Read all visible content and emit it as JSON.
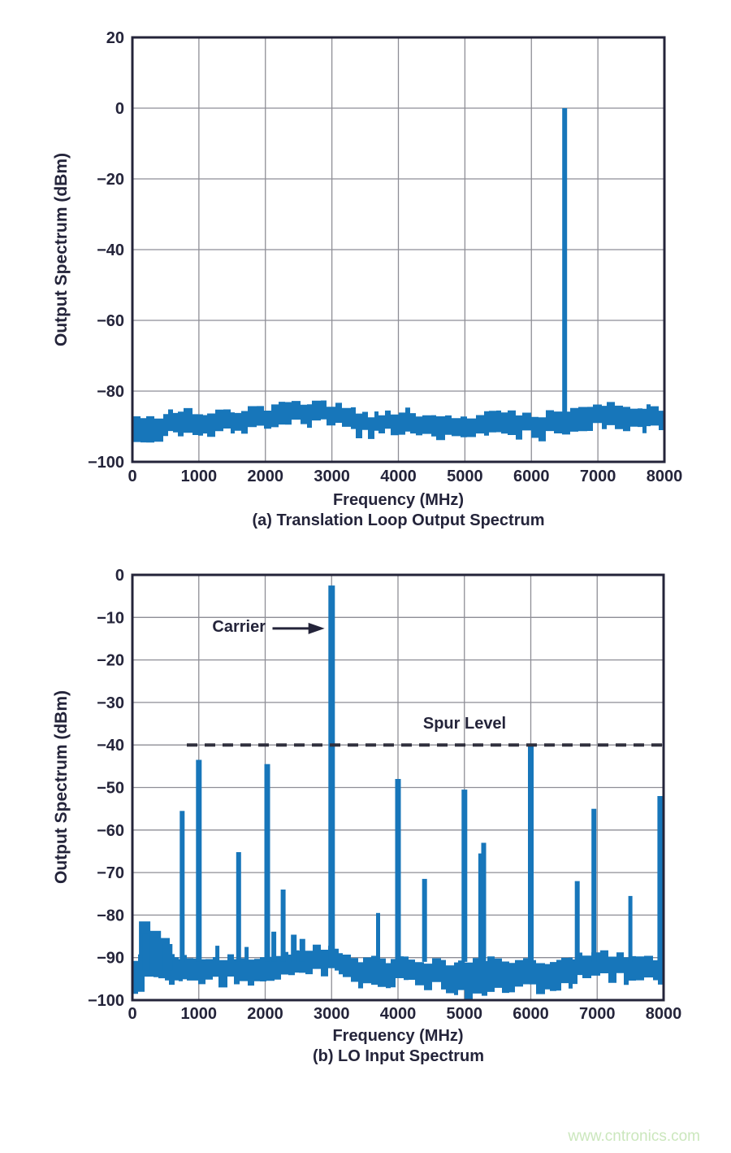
{
  "page": {
    "watermark": "www.cntronics.com"
  },
  "colors": {
    "bar": "#1776ba",
    "grid": "#8e8e96",
    "frame": "#24243a",
    "text": "#24243a",
    "dash": "#30303e",
    "watermark": "#cbe7bd",
    "background": "#ffffff"
  },
  "chart_data": [
    {
      "type": "bar",
      "id": "translation-loop-output",
      "caption": "(a) Translation Loop Output Spectrum",
      "xlabel": "Frequency (MHz)",
      "ylabel": "Output Spectrum (dBm)",
      "xlim": [
        0,
        8000
      ],
      "ylim": [
        -100,
        20
      ],
      "x_ticks": [
        0,
        1000,
        2000,
        3000,
        4000,
        5000,
        6000,
        7000,
        8000
      ],
      "y_ticks": [
        20,
        0,
        -20,
        -40,
        -60,
        -80,
        -100
      ],
      "grid": true,
      "noise_floor": {
        "seed": 20,
        "thickness_db": 5.0,
        "jitter_db": 2.2,
        "top_profile": [
          [
            0,
            -86.5
          ],
          [
            250,
            -88.0
          ],
          [
            700,
            -85.5
          ],
          [
            1200,
            -86.2
          ],
          [
            1800,
            -85.3
          ],
          [
            2500,
            -83.2
          ],
          [
            3050,
            -83.6
          ],
          [
            3600,
            -87.0
          ],
          [
            4050,
            -85.2
          ],
          [
            4600,
            -87.2
          ],
          [
            5100,
            -86.8
          ],
          [
            5600,
            -86.0
          ],
          [
            6100,
            -86.6
          ],
          [
            6500,
            -85.6
          ],
          [
            6950,
            -83.2
          ],
          [
            7400,
            -84.6
          ],
          [
            8000,
            -84.8
          ]
        ],
        "bottom_dips": [
          [
            250,
            1.6,
            300
          ]
        ]
      },
      "spurs": [
        {
          "freq": 6500,
          "level": 0,
          "width": 6
        }
      ]
    },
    {
      "type": "bar",
      "id": "lo-input",
      "caption": "(b) LO Input Spectrum",
      "xlabel": "Frequency (MHz)",
      "ylabel": "Output Spectrum (dBm)",
      "xlim": [
        0,
        8000
      ],
      "ylim": [
        -100,
        0
      ],
      "x_ticks": [
        0,
        1000,
        2000,
        3000,
        4000,
        5000,
        6000,
        7000,
        8000
      ],
      "y_ticks": [
        0,
        -10,
        -20,
        -30,
        -40,
        -50,
        -60,
        -70,
        -80,
        -90,
        -100
      ],
      "grid": true,
      "spur_level_line": {
        "level": -40,
        "start_freq": 820,
        "label": "Spur Level"
      },
      "noise_floor": {
        "seed": 77,
        "thickness_db": 4.6,
        "jitter_db": 2.0,
        "top_profile": [
          [
            0,
            -90.5
          ],
          [
            200,
            -87.5
          ],
          [
            350,
            -87.0
          ],
          [
            550,
            -89.0
          ],
          [
            900,
            -90.5
          ],
          [
            1400,
            -89.8
          ],
          [
            2000,
            -90.2
          ],
          [
            2450,
            -88.2
          ],
          [
            2750,
            -87.2
          ],
          [
            3100,
            -88.6
          ],
          [
            3500,
            -90.6
          ],
          [
            4000,
            -90.2
          ],
          [
            4600,
            -90.8
          ],
          [
            5100,
            -91.0
          ],
          [
            5600,
            -90.2
          ],
          [
            6100,
            -91.0
          ],
          [
            6550,
            -90.2
          ],
          [
            6850,
            -88.6
          ],
          [
            7250,
            -89.6
          ],
          [
            7650,
            -90.2
          ],
          [
            8000,
            -89.6
          ]
        ],
        "bottom_dips": [
          [
            250,
            3.0,
            280
          ],
          [
            5250,
            2.6,
            430
          ],
          [
            3600,
            1.2,
            400
          ],
          [
            6400,
            1.0,
            500
          ]
        ]
      },
      "noise_bumps": [
        {
          "freq": 185,
          "level": -81.5,
          "width": 14
        },
        {
          "freq": 265,
          "level": -84.3,
          "width": 18
        },
        {
          "freq": 345,
          "level": -83.7,
          "width": 14
        },
        {
          "freq": 440,
          "level": -85.4,
          "width": 20
        },
        {
          "freq": 530,
          "level": -86.8,
          "width": 12
        }
      ],
      "spurs": [
        {
          "freq": 750,
          "level": -55.5
        },
        {
          "freq": 1000,
          "level": -43.5,
          "width": 7
        },
        {
          "freq": 1280,
          "level": -87.2,
          "width": 5
        },
        {
          "freq": 1600,
          "level": -65.2
        },
        {
          "freq": 1720,
          "level": -87.5,
          "width": 5
        },
        {
          "freq": 2030,
          "level": -44.5,
          "width": 7
        },
        {
          "freq": 2130,
          "level": -83.9,
          "width": 6
        },
        {
          "freq": 2270,
          "level": -74.0
        },
        {
          "freq": 2430,
          "level": -84.6,
          "width": 7
        },
        {
          "freq": 2560,
          "level": -85.6,
          "width": 7
        },
        {
          "freq": 3000,
          "level": -2.5,
          "width": 8,
          "carrier": true
        },
        {
          "freq": 3700,
          "level": -79.5,
          "width": 5
        },
        {
          "freq": 4000,
          "level": -48.0,
          "width": 7
        },
        {
          "freq": 4400,
          "level": -71.5
        },
        {
          "freq": 5000,
          "level": -50.5,
          "width": 7
        },
        {
          "freq": 5240,
          "level": -65.5,
          "width": 5
        },
        {
          "freq": 5290,
          "level": -63.0,
          "width": 6
        },
        {
          "freq": 6000,
          "level": -40.0,
          "width": 7
        },
        {
          "freq": 6700,
          "level": -72.0
        },
        {
          "freq": 6950,
          "level": -55.0
        },
        {
          "freq": 7500,
          "level": -75.5,
          "width": 5
        },
        {
          "freq": 7950,
          "level": -52.0,
          "width": 7
        }
      ],
      "annotations": {
        "carrier_label": "Carrier",
        "carrier_text_end_freq": 2010,
        "carrier_arrow_from_freq": 2110,
        "carrier_arrow_to_freq": 2895,
        "carrier_level": -12.6,
        "spur_label_freq": 5000,
        "spur_label_level": -36.5
      }
    }
  ]
}
